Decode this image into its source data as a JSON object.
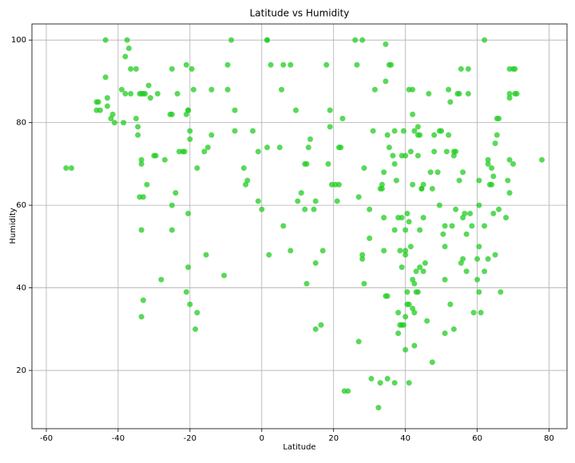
{
  "chart_data": {
    "type": "scatter",
    "title": "Latitude vs Humidity",
    "x_label": "Latitude",
    "y_label": "Humidity",
    "color": "#22cc22",
    "grid": true,
    "xlim": [
      -64,
      85
    ],
    "ylim": [
      5.9,
      103.9
    ],
    "xticks": [
      -60,
      -40,
      -20,
      0,
      20,
      40,
      60,
      80
    ],
    "yticks": [
      20,
      40,
      60,
      80,
      100
    ],
    "x": [
      -54.5,
      -53,
      -46,
      -45.5,
      -46,
      -45,
      -43.5,
      -43.5,
      -43,
      -43,
      -42,
      -41.5,
      -41,
      -39,
      -38.5,
      -38,
      -37.5,
      -38,
      -37,
      -36.5,
      -36.5,
      -35,
      -35,
      -34.5,
      -34.5,
      -34,
      -33.5,
      -33,
      -34,
      -33,
      -33.5,
      -33.5,
      -33.5,
      -33.5,
      -33,
      -32.5,
      -32,
      -31.5,
      -31,
      -30,
      -29.5,
      -29,
      -28,
      -27,
      -25.5,
      -25,
      -25,
      -25,
      -25,
      -24,
      -23.5,
      -23,
      -22,
      -21.5,
      -21,
      -21,
      -20.5,
      -20.5,
      -20,
      -20,
      -21,
      -20.5,
      -20.5,
      -20,
      -18,
      -18.5,
      -19,
      -19.5,
      -18,
      -16,
      -15.5,
      -15,
      -14,
      -14,
      -10.5,
      -9.5,
      -9.5,
      -8.5,
      -7.5,
      -7.5,
      -5,
      -4.5,
      -4,
      -2.5,
      -1,
      -1,
      0,
      1.5,
      1.5,
      1.5,
      2,
      2.5,
      5,
      5.5,
      6,
      6,
      8,
      8,
      9.5,
      10,
      11,
      12,
      12.5,
      12,
      12.5,
      13,
      13.5,
      14.5,
      15,
      15,
      15,
      16.5,
      17,
      18,
      18.5,
      19,
      19,
      19.5,
      20.5,
      21,
      21.5,
      21.5,
      22,
      22.5,
      23,
      24,
      26,
      26.5,
      27,
      27,
      28,
      28,
      28,
      28.5,
      28.5,
      30,
      30,
      30.5,
      31,
      31.5,
      32.5,
      33,
      33,
      33.5,
      33.5,
      34,
      34,
      34,
      34.5,
      35,
      34.5,
      34.5,
      35,
      35,
      35.5,
      35.5,
      36,
      36.5,
      37,
      37,
      37,
      37,
      37.5,
      38,
      38,
      38,
      38.5,
      38.5,
      39,
      39,
      39,
      39,
      39.5,
      39.5,
      40,
      40,
      40,
      40,
      40,
      40,
      40.5,
      40.5,
      40.5,
      41,
      41,
      41,
      41,
      41.5,
      41.5,
      42,
      42,
      42,
      42,
      42,
      42.5,
      42.5,
      42.5,
      42.5,
      43,
      43,
      43.5,
      43.5,
      43.5,
      43.5,
      44,
      44,
      44,
      44.5,
      44.5,
      45,
      45,
      45,
      45.5,
      46,
      46.5,
      47,
      47.5,
      47.5,
      48,
      48,
      49,
      49.5,
      49.5,
      50,
      50.5,
      51,
      51,
      51,
      51,
      51.5,
      52,
      52,
      52.5,
      52.5,
      53,
      53.5,
      53.5,
      54,
      53.5,
      54,
      54.5,
      55,
      55,
      55.5,
      55.5,
      56,
      56,
      56,
      56.5,
      57,
      57,
      57.5,
      57.5,
      58,
      58.5,
      59,
      60,
      60,
      60.5,
      60.5,
      60.5,
      60.5,
      61,
      62,
      62,
      62,
      63,
      63,
      63,
      63.5,
      64,
      64,
      64.5,
      64.5,
      65,
      65,
      65.5,
      65.5,
      66,
      66,
      66.5,
      68,
      68.5,
      69,
      69,
      69,
      69,
      69,
      70,
      70,
      70.5,
      70.5,
      71,
      78
    ],
    "y": [
      69,
      69,
      83,
      85,
      85,
      83,
      100,
      91,
      86,
      84,
      81,
      82,
      80,
      88,
      80,
      96,
      100,
      87,
      98,
      87,
      93,
      93,
      81,
      79,
      77,
      87,
      87,
      87,
      62,
      62,
      71,
      70,
      54,
      33,
      37,
      87,
      65,
      89,
      86,
      72,
      72,
      87,
      42,
      71,
      82,
      82,
      93,
      60,
      54,
      63,
      87,
      73,
      73,
      73,
      94,
      82,
      83,
      83,
      76,
      78,
      39,
      58,
      45,
      36,
      34,
      30,
      88,
      93,
      69,
      73,
      48,
      74,
      77,
      88,
      43,
      94,
      88,
      100,
      78,
      83,
      69,
      65,
      66,
      78,
      73,
      61,
      59,
      100,
      100,
      74,
      48,
      94,
      74,
      88,
      94,
      55,
      94,
      49,
      83,
      61,
      63,
      70,
      70,
      59,
      41,
      74,
      76,
      59,
      61,
      46,
      30,
      31,
      49,
      94,
      70,
      83,
      79,
      65,
      65,
      61,
      65,
      74,
      74,
      81,
      15,
      15,
      100,
      94,
      62,
      27,
      47,
      48,
      100,
      69,
      41,
      59,
      52,
      18,
      78,
      88,
      11,
      64,
      17,
      65,
      64,
      49,
      57,
      68,
      38,
      38,
      90,
      99,
      77,
      18,
      94,
      74,
      94,
      72,
      78,
      70,
      54,
      17,
      66,
      29,
      34,
      57,
      49,
      31,
      31,
      72,
      45,
      57,
      78,
      31,
      72,
      54,
      48,
      33,
      25,
      49,
      39,
      58,
      36,
      36,
      56,
      17,
      88,
      50,
      73,
      82,
      35,
      42,
      65,
      88,
      41,
      78,
      34,
      26,
      44,
      39,
      39,
      79,
      72,
      77,
      77,
      45,
      54,
      64,
      64,
      65,
      57,
      44,
      46,
      32,
      87,
      68,
      22,
      64,
      77,
      73,
      68,
      78,
      60,
      78,
      53,
      42,
      29,
      50,
      55,
      73,
      77,
      88,
      85,
      36,
      55,
      73,
      72,
      73,
      30,
      59,
      87,
      87,
      66,
      93,
      46,
      68,
      47,
      57,
      58,
      53,
      44,
      87,
      93,
      58,
      55,
      34,
      47,
      42,
      60,
      66,
      39,
      50,
      34,
      100,
      44,
      55,
      47,
      71,
      70,
      65,
      65,
      69,
      67,
      58,
      48,
      75,
      77,
      81,
      81,
      59,
      39,
      57,
      66,
      71,
      87,
      86,
      93,
      63,
      93,
      70,
      87,
      93,
      87,
      71
    ]
  }
}
